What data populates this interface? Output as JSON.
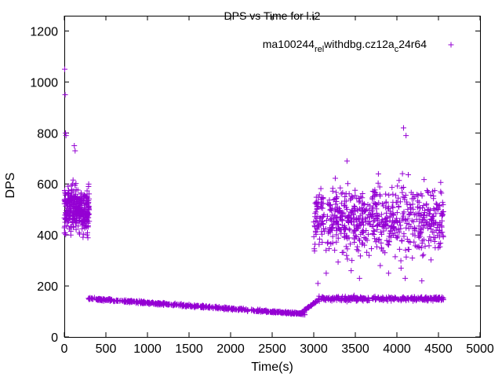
{
  "chart_data": {
    "type": "scatter",
    "title": "DPS vs Time for l.i2",
    "xlabel": "Time(s)",
    "ylabel": "DPS",
    "xlim": [
      0,
      5000
    ],
    "ylim": [
      0,
      1260
    ],
    "x_ticks": [
      0,
      500,
      1000,
      1500,
      2000,
      2500,
      3000,
      3500,
      4000,
      4500,
      5000
    ],
    "y_ticks": [
      0,
      200,
      400,
      600,
      800,
      1000,
      1200
    ],
    "grid": false,
    "legend_position": "top-right",
    "marker": "+",
    "series": [
      {
        "name_parts": [
          "ma100244",
          "rel",
          "withdbg.cz12a",
          "c",
          "24r64"
        ],
        "color": "#9400d3",
        "segments": [
          {
            "x_range": [
              0,
              300
            ],
            "y_center": 500,
            "y_spread": 150,
            "note": "high-variance startup cluster"
          },
          {
            "x_range": [
              290,
              2900
            ],
            "y_start": 150,
            "y_end": 90,
            "note": "low steady band"
          },
          {
            "x_range": [
              2850,
              3050
            ],
            "y_start": 95,
            "y_end": 145,
            "note": "ramp"
          },
          {
            "x_range": [
              3050,
              4560
            ],
            "y_center": 150,
            "y_spread": 15,
            "note": "lower band"
          },
          {
            "x_range": [
              3000,
              4560
            ],
            "y_center": 460,
            "y_spread": 200,
            "note": "upper scatter band"
          }
        ],
        "outliers": [
          {
            "x": 5,
            "y": 1050
          },
          {
            "x": 10,
            "y": 950
          },
          {
            "x": 15,
            "y": 800
          },
          {
            "x": 20,
            "y": 790
          },
          {
            "x": 120,
            "y": 750
          },
          {
            "x": 130,
            "y": 730
          },
          {
            "x": 4080,
            "y": 820
          },
          {
            "x": 4110,
            "y": 790
          },
          {
            "x": 3400,
            "y": 690
          },
          {
            "x": 3150,
            "y": 250
          },
          {
            "x": 3450,
            "y": 260
          },
          {
            "x": 3800,
            "y": 280
          },
          {
            "x": 3900,
            "y": 250
          },
          {
            "x": 4050,
            "y": 270
          },
          {
            "x": 4100,
            "y": 230
          },
          {
            "x": 3050,
            "y": 210
          },
          {
            "x": 3550,
            "y": 230
          },
          {
            "x": 4300,
            "y": 220
          }
        ]
      }
    ]
  }
}
